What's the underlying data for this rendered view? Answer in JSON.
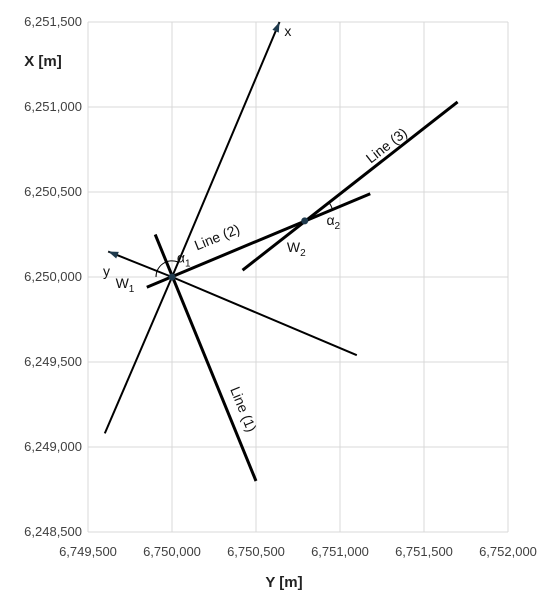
{
  "chart_data": {
    "type": "scatter",
    "xlabel": "Y [m]",
    "ylabel": "X [m]",
    "xlim": [
      6749500,
      6752000
    ],
    "ylim": [
      6248500,
      6251500
    ],
    "xticks": [
      6749500,
      6750000,
      6750500,
      6751000,
      6751500,
      6752000
    ],
    "yticks": [
      6248500,
      6249000,
      6249500,
      6250000,
      6250500,
      6251000,
      6251500
    ],
    "xtick_labels": [
      "6,749,500",
      "6,750,000",
      "6,750,500",
      "6,751,000",
      "6,751,500",
      "6,752,000"
    ],
    "ytick_labels": [
      "6,248,500",
      "6,249,000",
      "6,249,500",
      "6,250,000",
      "6,250,500",
      "6,251,000",
      "6,251,500"
    ],
    "grid": true,
    "color": "#000000",
    "point_color": "#1f3a4d",
    "lines": [
      {
        "id": "line-1",
        "x": [
          6749900,
          6750500
        ],
        "y": [
          6250250,
          6248800
        ],
        "width": 3
      },
      {
        "id": "line-2",
        "x": [
          6749850,
          6751180
        ],
        "y": [
          6249940,
          6250490
        ],
        "width": 3
      },
      {
        "id": "line-3",
        "x": [
          6750420,
          6751700
        ],
        "y": [
          6250040,
          6251030
        ],
        "width": 3
      },
      {
        "id": "line-4",
        "x": [
          6749600,
          6750000
        ],
        "y": [
          6249080,
          6250000
        ],
        "width": 2
      },
      {
        "id": "line-5",
        "x": [
          6750000,
          6751100
        ],
        "y": [
          6250000,
          6249540
        ],
        "width": 2
      },
      {
        "id": "line-6",
        "x": [
          6749620,
          6750000
        ],
        "y": [
          6250150,
          6250000
        ],
        "width": 2
      },
      {
        "id": "line-7",
        "x": [
          6750000,
          6750640
        ],
        "y": [
          6250000,
          6251500
        ],
        "width": 2
      }
    ],
    "arrows": [
      {
        "id": "x-axis-arrow",
        "x": 6750640,
        "y": 6251500,
        "dx": 0.39,
        "dy": 0.92
      },
      {
        "id": "y-axis-arrow",
        "x": 6749620,
        "y": 6250150,
        "dx": -0.93,
        "dy": 0.37
      }
    ],
    "points": [
      {
        "id": "W1",
        "x": 6750000,
        "y": 6250000
      },
      {
        "id": "W2",
        "x": 6750790,
        "y": 6250330
      }
    ],
    "annotations": [
      {
        "id": "label-x",
        "text": "x",
        "x": 6750690,
        "y": 6251440
      },
      {
        "id": "label-y",
        "text": "y",
        "x": 6749610,
        "y": 6250030
      },
      {
        "id": "label-w1",
        "text": "W",
        "sub": "1",
        "x": 6749720,
        "y": 6249960
      },
      {
        "id": "label-w2",
        "text": "W",
        "sub": "2",
        "x": 6750740,
        "y": 6250170
      },
      {
        "id": "label-alpha1",
        "text": "α",
        "sub": "1",
        "x": 6750070,
        "y": 6250110
      },
      {
        "id": "label-alpha2",
        "text": "α",
        "sub": "2",
        "x": 6750960,
        "y": 6250330
      },
      {
        "id": "label-line-1",
        "text": "Line (1)",
        "x": 6750420,
        "y": 6249220,
        "angle": 68
      },
      {
        "id": "label-line-2",
        "text": "Line (2)",
        "x": 6750270,
        "y": 6250230,
        "angle": -22
      },
      {
        "id": "label-line-3",
        "text": "Line (3)",
        "x": 6751280,
        "y": 6250770,
        "angle": -38
      }
    ]
  }
}
